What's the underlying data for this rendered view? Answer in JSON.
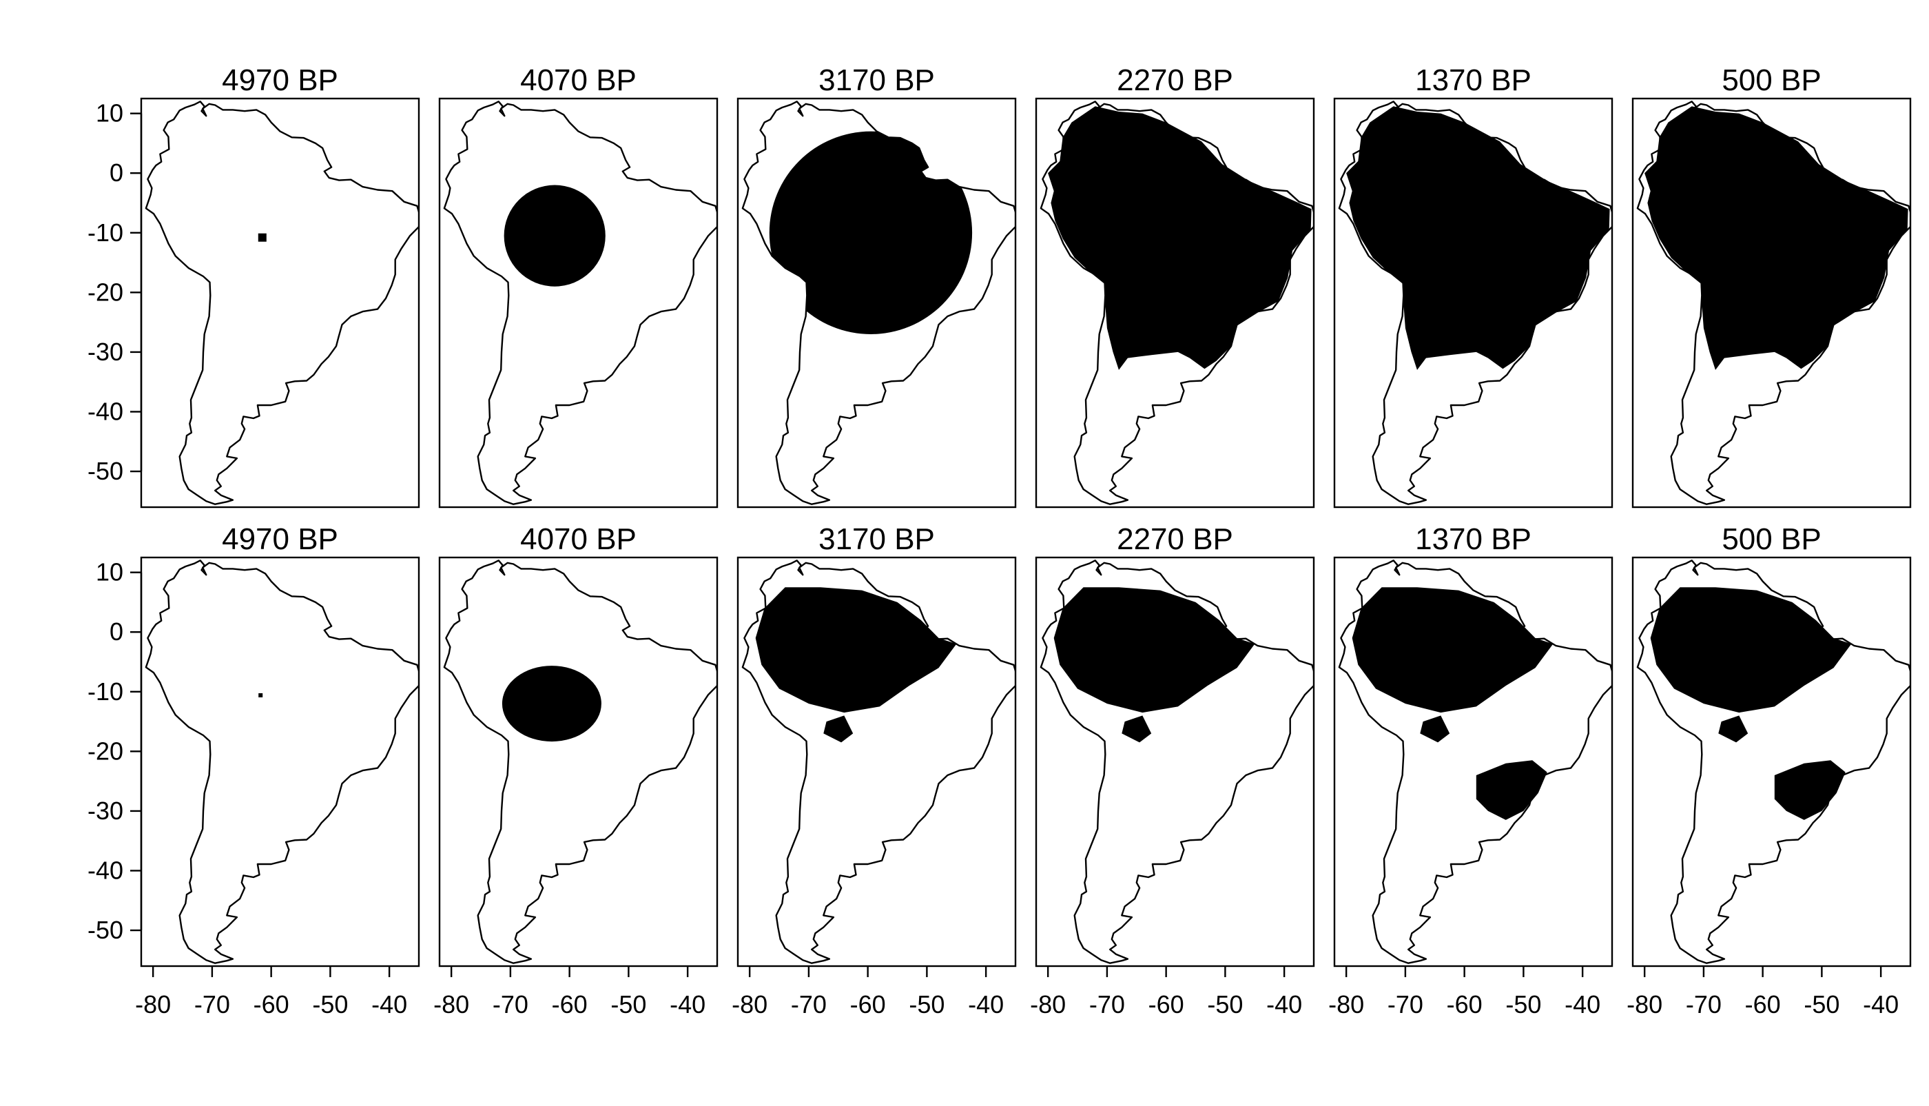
{
  "figure": {
    "colors": {
      "background": "#ffffff",
      "ink": "#000000",
      "occupied": "#000000"
    },
    "icon_names": [
      "south-america-outline",
      "range-fill"
    ]
  },
  "chart_data": {
    "type": "map-small-multiples",
    "units": {
      "x": "longitude (degrees)",
      "y": "latitude (degrees)"
    },
    "xlim": [
      -82,
      -35
    ],
    "ylim": [
      -56,
      12.5
    ],
    "x_ticks": [
      -80,
      -70,
      -60,
      -50,
      -40
    ],
    "y_ticks": [
      10,
      0,
      -10,
      -20,
      -30,
      -40,
      -50
    ],
    "x_tick_labels": [
      "-80",
      "-70",
      "-60",
      "-50",
      "-40"
    ],
    "y_tick_labels": [
      "10",
      "0",
      "-10",
      "-20",
      "-30",
      "-40",
      "-50"
    ],
    "grid": false,
    "legend": "none",
    "rows": [
      {
        "panels": [
          {
            "title": "4970 BP",
            "range_shape": "cell",
            "center": [
              -61.5,
              -10.8
            ]
          },
          {
            "title": "4070 BP",
            "range_shape": "disc",
            "center": [
              -62.5,
              -10.5
            ],
            "radius_deg": 8.5
          },
          {
            "title": "3170 BP",
            "range_shape": "disc",
            "center": [
              -59.5,
              -10
            ],
            "radius_deg": 17
          },
          {
            "title": "2270 BP",
            "range_shape": "region",
            "extent": "most of continent north of -33"
          },
          {
            "title": "1370 BP",
            "range_shape": "region",
            "extent": "most of continent north of -33"
          },
          {
            "title": "500 BP",
            "range_shape": "region",
            "extent": "most of continent north of -35"
          }
        ]
      },
      {
        "panels": [
          {
            "title": "4970 BP",
            "range_shape": "cell",
            "center": [
              -61.8,
              -10.6
            ]
          },
          {
            "title": "4070 BP",
            "range_shape": "partial",
            "center": [
              -63,
              -12
            ]
          },
          {
            "title": "3170 BP",
            "range_shape": "patchy",
            "core": "Amazon basin"
          },
          {
            "title": "2270 BP",
            "range_shape": "patchy",
            "core": "Amazon basin"
          },
          {
            "title": "1370 BP",
            "range_shape": "patchy",
            "core": "Amazon basin + southeast"
          },
          {
            "title": "500 BP",
            "range_shape": "patchy",
            "core": "Amazon basin + southeast"
          }
        ]
      }
    ]
  }
}
